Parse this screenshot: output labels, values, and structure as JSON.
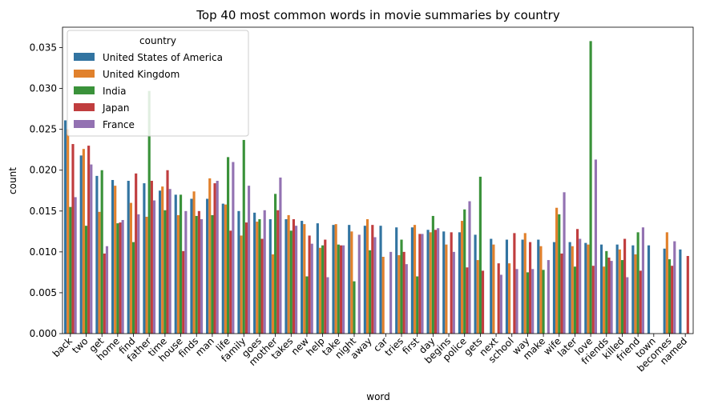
{
  "chart_data": {
    "type": "bar",
    "title": "Top 40 most common words in movie summaries by country",
    "xlabel": "word",
    "ylabel": "count",
    "ylim": [
      0,
      0.0375
    ],
    "yticks": [
      "0.000",
      "0.005",
      "0.010",
      "0.015",
      "0.020",
      "0.025",
      "0.030",
      "0.035"
    ],
    "legend": {
      "title": "country",
      "position": "top-left"
    },
    "categories": [
      "back",
      "two",
      "get",
      "home",
      "find",
      "father",
      "time",
      "house",
      "finds",
      "man",
      "life",
      "family",
      "goes",
      "mother",
      "takes",
      "new",
      "help",
      "take",
      "night",
      "away",
      "car",
      "tries",
      "first",
      "day",
      "begins",
      "police",
      "gets",
      "next",
      "school",
      "way",
      "make",
      "wife",
      "later",
      "love",
      "friends",
      "killed",
      "friend",
      "town",
      "becomes",
      "named"
    ],
    "series": [
      {
        "name": "United States of America",
        "color": "#3274a1",
        "values": [
          0.0261,
          0.0218,
          0.0193,
          0.0188,
          0.0187,
          0.0184,
          0.0175,
          0.017,
          0.0165,
          0.0165,
          0.0159,
          0.015,
          0.0148,
          0.014,
          0.014,
          0.0138,
          0.0135,
          0.0133,
          0.0133,
          0.0132,
          0.0132,
          0.013,
          0.013,
          0.0127,
          0.0125,
          0.0124,
          0.0121,
          0.0116,
          0.0115,
          0.0115,
          0.0115,
          0.0112,
          0.0112,
          0.0111,
          0.0109,
          0.0109,
          0.0108,
          0.0108,
          0.0104,
          0.0103
        ]
      },
      {
        "name": "United Kingdom",
        "color": "#e1812c",
        "values": [
          0.025,
          0.0226,
          0.0149,
          0.0181,
          0.016,
          0.0143,
          0.018,
          0.0145,
          0.0174,
          0.019,
          0.0158,
          0.012,
          0.0137,
          0.0097,
          0.0145,
          0.0134,
          0.0105,
          0.0134,
          0.0125,
          0.014,
          0.0094,
          0.0096,
          0.0133,
          0.0124,
          0.0109,
          0.0138,
          0.009,
          0.0109,
          0.0086,
          0.0123,
          0.0107,
          0.0154,
          0.0107,
          0.0109,
          0.0082,
          0.0103,
          0.0097,
          0.0,
          0.0124,
          0.0
        ]
      },
      {
        "name": "India",
        "color": "#3a923a",
        "values": [
          0.0155,
          0.0132,
          0.02,
          0.0135,
          0.0112,
          0.0297,
          0.0151,
          0.017,
          0.0144,
          0.0145,
          0.0216,
          0.0237,
          0.014,
          0.0171,
          0.0126,
          0.007,
          0.0108,
          0.0109,
          0.0064,
          0.0102,
          0.0,
          0.0115,
          0.007,
          0.0144,
          0.0,
          0.0152,
          0.0192,
          0.0,
          0.0,
          0.0075,
          0.0078,
          0.0146,
          0.0082,
          0.0358,
          0.0101,
          0.009,
          0.0124,
          0.0,
          0.0091,
          0.0
        ]
      },
      {
        "name": "Japan",
        "color": "#c03d3e",
        "values": [
          0.0232,
          0.023,
          0.0098,
          0.0136,
          0.0196,
          0.0187,
          0.02,
          0.0101,
          0.015,
          0.0184,
          0.0126,
          0.0136,
          0.0116,
          0.0151,
          0.014,
          0.012,
          0.0115,
          0.0108,
          0.0,
          0.0133,
          0.0,
          0.01,
          0.0122,
          0.0127,
          0.0124,
          0.0081,
          0.0077,
          0.0086,
          0.0123,
          0.0112,
          0.0,
          0.0098,
          0.0128,
          0.0083,
          0.0093,
          0.0116,
          0.0077,
          0.0,
          0.0083,
          0.0095
        ]
      },
      {
        "name": "France",
        "color": "#9372b2",
        "values": [
          0.0167,
          0.0207,
          0.0107,
          0.0139,
          0.0146,
          0.0163,
          0.0177,
          0.015,
          0.014,
          0.0187,
          0.021,
          0.0181,
          0.0151,
          0.0191,
          0.0132,
          0.011,
          0.0069,
          0.0108,
          0.0121,
          0.0118,
          0.01,
          0.0085,
          0.0122,
          0.0129,
          0.01,
          0.0162,
          0.0,
          0.0072,
          0.0079,
          0.0079,
          0.009,
          0.0173,
          0.0116,
          0.0213,
          0.0089,
          0.0069,
          0.013,
          0.0,
          0.0113,
          0.0
        ]
      }
    ]
  }
}
